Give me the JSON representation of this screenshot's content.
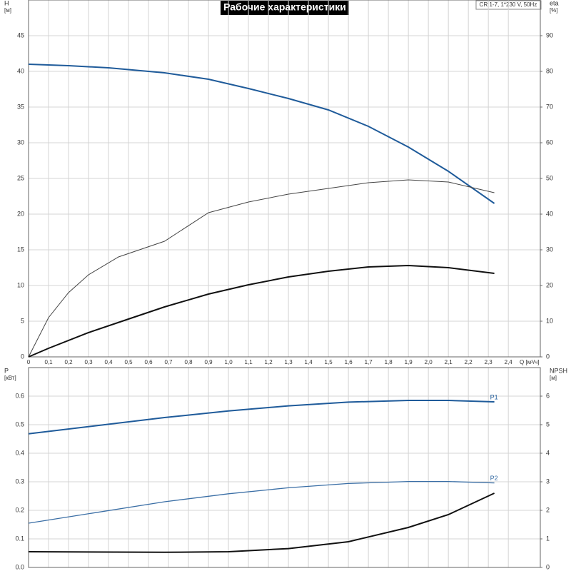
{
  "header": {
    "title": "Рабочие характеристики",
    "model": "CR 1-7, 1*230 V, 50Hz"
  },
  "chart_data": [
    {
      "type": "line",
      "y_label": "H",
      "y_unit": "[м]",
      "y2_label": "eta",
      "y2_unit": "[%]",
      "x_label": "Q [м³/ч]",
      "xlim": [
        0,
        2.56
      ],
      "ylim": [
        0,
        50
      ],
      "y2lim": [
        0,
        100
      ],
      "grid": true,
      "xticks": [
        0,
        {
          "value": 0.1,
          "label": "0,1"
        },
        {
          "value": 0.2,
          "label": "0,2"
        },
        {
          "value": 0.3,
          "label": "0,3"
        },
        {
          "value": 0.4,
          "label": "0,4"
        },
        {
          "value": 0.5,
          "label": "0,5"
        },
        {
          "value": 0.6,
          "label": "0,6"
        },
        {
          "value": 0.7,
          "label": "0,7"
        },
        {
          "value": 0.8,
          "label": "0,8"
        },
        {
          "value": 0.9,
          "label": "0,9"
        },
        {
          "value": 1.0,
          "label": "1,0"
        },
        {
          "value": 1.1,
          "label": "1,1"
        },
        {
          "value": 1.2,
          "label": "1,2"
        },
        {
          "value": 1.3,
          "label": "1,3"
        },
        {
          "value": 1.4,
          "label": "1,4"
        },
        {
          "value": 1.5,
          "label": "1,5"
        },
        {
          "value": 1.6,
          "label": "1,6"
        },
        {
          "value": 1.7,
          "label": "1,7"
        },
        {
          "value": 1.8,
          "label": "1,8"
        },
        {
          "value": 1.9,
          "label": "1,9"
        },
        {
          "value": 2.0,
          "label": "2,0"
        },
        {
          "value": 2.1,
          "label": "2,1"
        },
        {
          "value": 2.2,
          "label": "2,2"
        },
        {
          "value": 2.3,
          "label": "2,3"
        },
        {
          "value": 2.4,
          "label": "2,4"
        }
      ],
      "yticks": [
        0,
        5,
        10,
        15,
        20,
        25,
        30,
        35,
        40,
        45
      ],
      "y2ticks": [
        0,
        10,
        20,
        30,
        40,
        50,
        60,
        70,
        80,
        90
      ],
      "series": [
        {
          "color": "#1f5b9a",
          "width": 2,
          "x": [
            0,
            0.2,
            0.4,
            0.68,
            0.9,
            1.1,
            1.3,
            1.5,
            1.7,
            1.9,
            2.1,
            2.33
          ],
          "values": [
            41,
            40.8,
            40.5,
            39.8,
            38.9,
            37.6,
            36.2,
            34.6,
            32.3,
            29.4,
            26,
            21.5
          ]
        },
        {
          "color": "#444444",
          "width": 1,
          "axis": "y2",
          "x": [
            0,
            0.1,
            0.2,
            0.3,
            0.45,
            0.68,
            0.9,
            1.1,
            1.3,
            1.5,
            1.7,
            1.9,
            2.1,
            2.33
          ],
          "values": [
            0,
            11,
            18,
            23,
            28,
            32.4,
            40.4,
            43.4,
            45.6,
            47.2,
            48.8,
            49.6,
            49,
            46
          ]
        },
        {
          "color": "#111111",
          "width": 2,
          "axis": "y2",
          "x": [
            0,
            0.1,
            0.3,
            0.5,
            0.68,
            0.9,
            1.1,
            1.3,
            1.5,
            1.7,
            1.9,
            2.1,
            2.33
          ],
          "values": [
            0,
            2.4,
            6.8,
            10.6,
            14,
            17.6,
            20.2,
            22.4,
            24,
            25.2,
            25.6,
            25,
            23.4
          ]
        }
      ]
    },
    {
      "type": "line",
      "y_label": "P",
      "y_unit": "[кВт]",
      "y2_label": "NPSH",
      "y2_unit": "[м]",
      "xlim": [
        0,
        2.56
      ],
      "ylim": [
        0,
        0.7
      ],
      "y2lim": [
        0,
        7
      ],
      "grid": true,
      "yticks": [
        {
          "value": 0,
          "label": "0.0"
        },
        0.1,
        0.2,
        0.3,
        0.4,
        0.5,
        0.6
      ],
      "y2ticks": [
        0,
        1,
        2,
        3,
        4,
        5,
        6
      ],
      "series": [
        {
          "name": "P1",
          "color": "#1f5b9a",
          "width": 2,
          "x": [
            0,
            0.68,
            1.0,
            1.3,
            1.6,
            1.9,
            2.1,
            2.33
          ],
          "values": [
            0.468,
            0.525,
            0.548,
            0.566,
            0.579,
            0.585,
            0.585,
            0.58
          ]
        },
        {
          "name": "P2",
          "color": "#3a6ea5",
          "width": 1.3,
          "x": [
            0,
            0.68,
            1.0,
            1.3,
            1.6,
            1.9,
            2.1,
            2.33
          ],
          "values": [
            0.155,
            0.23,
            0.258,
            0.279,
            0.294,
            0.301,
            0.301,
            0.296
          ]
        },
        {
          "color": "#111111",
          "width": 2,
          "axis": "y2",
          "x": [
            0,
            0.68,
            1.0,
            1.3,
            1.6,
            1.9,
            2.1,
            2.33
          ],
          "values": [
            0.55,
            0.53,
            0.55,
            0.66,
            0.9,
            1.4,
            1.85,
            2.6
          ]
        }
      ]
    }
  ]
}
